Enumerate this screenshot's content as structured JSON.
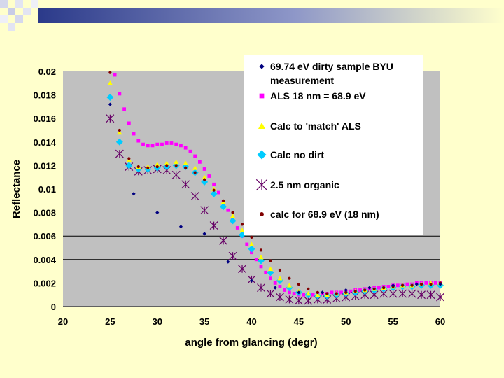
{
  "slide": {
    "background": "#FFFFCC",
    "header_gradient": [
      "#2B3A8A",
      "#FFFFCC"
    ]
  },
  "chart_data": {
    "type": "scatter",
    "title": "",
    "xlabel": "angle from glancing (degr)",
    "ylabel": "Reflectance",
    "xlim": [
      20,
      60
    ],
    "ylim": [
      0,
      0.02
    ],
    "x_ticks": [
      "20",
      "25",
      "30",
      "35",
      "40",
      "45",
      "50",
      "55",
      "60"
    ],
    "y_ticks": [
      "0",
      "0.002",
      "0.004",
      "0.006",
      "0.008",
      "0.01",
      "0.012",
      "0.014",
      "0.016",
      "0.018",
      "0.02"
    ],
    "gridlines_y": [
      0.004,
      0.006
    ],
    "plot_background": "#C0C0C0",
    "series": [
      {
        "name": "69.74 eV dirty sample BYU measurement",
        "marker": "diamond-small",
        "color": "#000080",
        "x": [
          25,
          27.5,
          30,
          32.5,
          35,
          37.5,
          40,
          42.5,
          45,
          47.5,
          50,
          52.5,
          55,
          57.5,
          60
        ],
        "y": [
          0.0172,
          0.0096,
          0.008,
          0.0068,
          0.0062,
          0.0038,
          0.0022,
          0.0016,
          0.0012,
          0.0012,
          0.0014,
          0.0016,
          0.0018,
          0.0019,
          0.0019
        ]
      },
      {
        "name": "ALS 18 nm = 68.9 eV",
        "marker": "square",
        "color": "#FF00FF",
        "x": [
          25.5,
          26,
          26.5,
          27,
          27.5,
          28,
          28.5,
          29,
          29.5,
          30,
          30.5,
          31,
          31.5,
          32,
          32.5,
          33,
          33.5,
          34,
          34.5,
          35,
          35.5,
          36,
          36.5,
          37,
          37.5,
          38,
          38.5,
          39,
          39.5,
          40,
          40.5,
          41,
          41.5,
          42,
          42.5,
          43,
          43.5,
          44,
          44.5,
          45,
          45.5,
          46,
          46.5,
          47,
          47.5,
          48,
          48.5,
          49,
          49.5,
          50,
          50.5,
          51,
          51.5,
          52,
          52.5,
          53,
          53.5,
          54,
          54.5,
          55,
          55.5,
          56,
          56.5,
          57,
          57.5,
          58,
          58.5,
          59,
          59.5,
          60
        ],
        "y": [
          0.0197,
          0.0181,
          0.0168,
          0.0156,
          0.0147,
          0.0141,
          0.0138,
          0.0137,
          0.0137,
          0.0138,
          0.0138,
          0.0139,
          0.0139,
          0.0138,
          0.0137,
          0.0135,
          0.0132,
          0.0128,
          0.0123,
          0.0117,
          0.0111,
          0.0104,
          0.0097,
          0.0089,
          0.0082,
          0.0074,
          0.0067,
          0.006,
          0.0053,
          0.0046,
          0.004,
          0.0034,
          0.0029,
          0.0024,
          0.002,
          0.0017,
          0.0014,
          0.0012,
          0.0011,
          0.001,
          0.001,
          0.001,
          0.001,
          0.0011,
          0.0011,
          0.0011,
          0.0012,
          0.0012,
          0.0012,
          0.0013,
          0.0013,
          0.0014,
          0.0014,
          0.0015,
          0.0015,
          0.0016,
          0.0016,
          0.0017,
          0.0017,
          0.0018,
          0.0018,
          0.0018,
          0.0019,
          0.0019,
          0.002,
          0.002,
          0.002,
          0.002,
          0.002,
          0.002
        ]
      },
      {
        "name": "Calc to 'match' ALS",
        "marker": "triangle",
        "color": "#FFFF00",
        "x": [
          25,
          26,
          27,
          28,
          29,
          30,
          31,
          32,
          33,
          34,
          35,
          36,
          37,
          38,
          39,
          40,
          41,
          42,
          43,
          44,
          45,
          46,
          47,
          48,
          49,
          50,
          51,
          52,
          53,
          54,
          55,
          56,
          57,
          58,
          59,
          60
        ],
        "y": [
          0.019,
          0.0148,
          0.0125,
          0.0119,
          0.0119,
          0.0121,
          0.0122,
          0.0123,
          0.0122,
          0.0118,
          0.011,
          0.01,
          0.0089,
          0.0077,
          0.0065,
          0.0053,
          0.0042,
          0.0032,
          0.0024,
          0.0018,
          0.0013,
          0.0011,
          0.001,
          0.001,
          0.0011,
          0.0012,
          0.0013,
          0.0014,
          0.0015,
          0.0016,
          0.0017,
          0.0018,
          0.0018,
          0.0019,
          0.002,
          0.002
        ]
      },
      {
        "name": "Calc no dirt",
        "marker": "diamond-large",
        "color": "#00CCFF",
        "x": [
          25,
          26,
          27,
          28,
          29,
          30,
          31,
          32,
          33,
          34,
          35,
          36,
          37,
          38,
          39,
          40,
          41,
          42,
          43,
          44,
          45,
          46,
          47,
          48,
          49,
          50,
          51,
          52,
          53,
          54,
          55,
          56,
          57,
          58,
          59,
          60
        ],
        "y": [
          0.0178,
          0.014,
          0.012,
          0.0117,
          0.0117,
          0.0118,
          0.0119,
          0.012,
          0.0119,
          0.0114,
          0.0106,
          0.0096,
          0.0085,
          0.0073,
          0.0061,
          0.0049,
          0.0039,
          0.0029,
          0.0022,
          0.0016,
          0.0012,
          0.001,
          0.0009,
          0.0009,
          0.001,
          0.0011,
          0.0012,
          0.0013,
          0.0014,
          0.0015,
          0.0016,
          0.0017,
          0.0017,
          0.0018,
          0.0018,
          0.0018
        ]
      },
      {
        "name": "2.5 nm organic",
        "marker": "asterisk",
        "color": "#660066",
        "x": [
          25,
          26,
          27,
          28,
          29,
          30,
          31,
          32,
          33,
          34,
          35,
          36,
          37,
          38,
          39,
          40,
          41,
          42,
          43,
          44,
          45,
          46,
          47,
          48,
          49,
          50,
          51,
          52,
          53,
          54,
          55,
          56,
          57,
          58,
          59,
          60
        ],
        "y": [
          0.016,
          0.013,
          0.0119,
          0.0115,
          0.0116,
          0.0117,
          0.0116,
          0.0112,
          0.0104,
          0.0094,
          0.0082,
          0.0069,
          0.0056,
          0.0043,
          0.0032,
          0.0023,
          0.0016,
          0.0011,
          0.0008,
          0.0006,
          0.0005,
          0.0005,
          0.0006,
          0.0006,
          0.0007,
          0.0008,
          0.0009,
          0.001,
          0.001,
          0.0011,
          0.0011,
          0.0011,
          0.0011,
          0.001,
          0.001,
          0.0008
        ]
      },
      {
        "name": "calc for 68.9 eV (18 nm)",
        "marker": "dot",
        "color": "#800000",
        "x": [
          25,
          26,
          27,
          28,
          29,
          30,
          31,
          32,
          33,
          34,
          35,
          36,
          37,
          38,
          39,
          40,
          41,
          42,
          43,
          44,
          45,
          46,
          47,
          48,
          49,
          50,
          51,
          52,
          53,
          54,
          55,
          56,
          57,
          58,
          59,
          60
        ],
        "y": [
          0.0199,
          0.015,
          0.0126,
          0.0119,
          0.0118,
          0.0119,
          0.012,
          0.012,
          0.0118,
          0.0114,
          0.0108,
          0.0099,
          0.009,
          0.008,
          0.007,
          0.0059,
          0.0048,
          0.0039,
          0.0031,
          0.0024,
          0.0019,
          0.0015,
          0.0012,
          0.0011,
          0.0011,
          0.0012,
          0.0013,
          0.0014,
          0.0015,
          0.0016,
          0.0017,
          0.0018,
          0.0018,
          0.0019,
          0.0019,
          0.002
        ]
      }
    ],
    "legend": {
      "placement": "top-right, overlapping plot",
      "entries": [
        "69.74 eV dirty sample BYU measurement",
        "ALS 18 nm = 68.9 eV",
        "Calc to 'match' ALS",
        "Calc no dirt",
        "2.5 nm organic",
        "calc for 68.9 eV (18 nm)"
      ]
    }
  }
}
